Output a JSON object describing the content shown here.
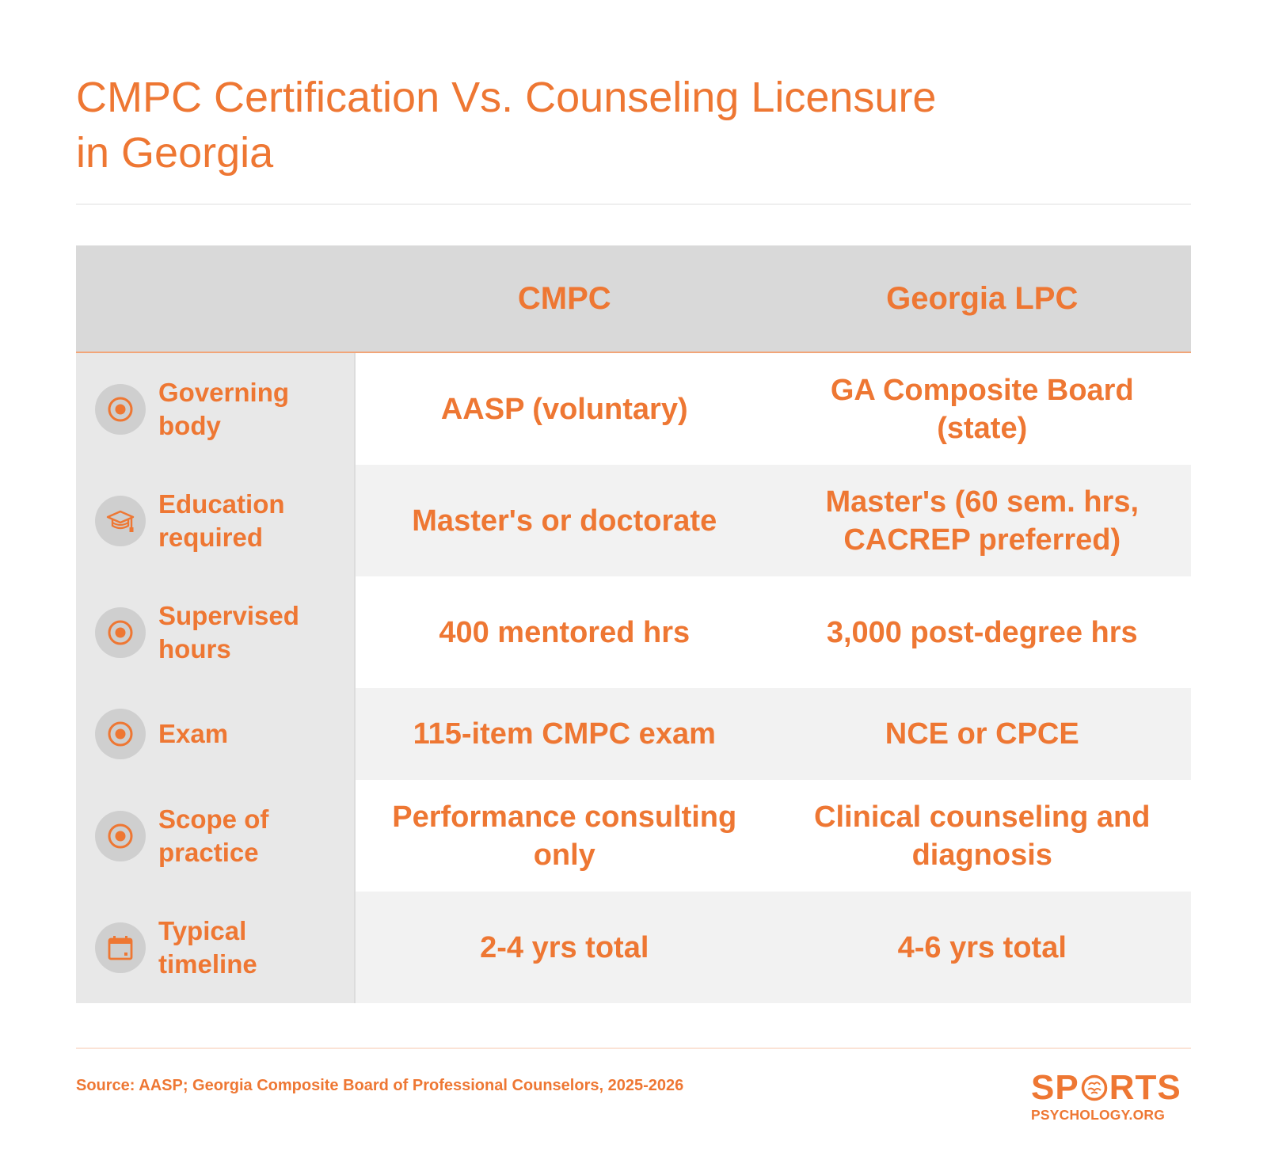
{
  "title_line1": "CMPC Certification Vs. Counseling Licensure",
  "title_line2": "in Georgia",
  "accent_color": "#ee7733",
  "chart_data": {
    "type": "table",
    "columns": [
      "",
      "CMPC",
      "Georgia LPC"
    ],
    "rows": [
      {
        "label": "Governing body",
        "icon": "target-icon",
        "cmpc": "AASP (voluntary)",
        "lpc": "GA Composite Board (state)"
      },
      {
        "label": "Education required",
        "icon": "graduation-cap-icon",
        "cmpc": "Master's or doctorate",
        "lpc": "Master's (60 sem. hrs, CACREP preferred)"
      },
      {
        "label": "Supervised hours",
        "icon": "target-icon",
        "cmpc": "400 mentored hrs",
        "lpc": "3,000 post-degree hrs"
      },
      {
        "label": "Exam",
        "icon": "target-icon",
        "cmpc": "115-item CMPC exam",
        "lpc": "NCE or CPCE"
      },
      {
        "label": "Scope of practice",
        "icon": "target-icon",
        "cmpc": "Performance consulting only",
        "lpc": "Clinical counseling and diagnosis"
      },
      {
        "label": "Typical timeline",
        "icon": "calendar-icon",
        "cmpc": "2-4 yrs total",
        "lpc": "4-6 yrs total"
      }
    ]
  },
  "source": "Source: AASP; Georgia Composite Board of Professional Counselors, 2025-2026",
  "logo": {
    "line1_a": "SP",
    "line1_b": "RTS",
    "line2": "PSYCHOLOGY.ORG"
  }
}
